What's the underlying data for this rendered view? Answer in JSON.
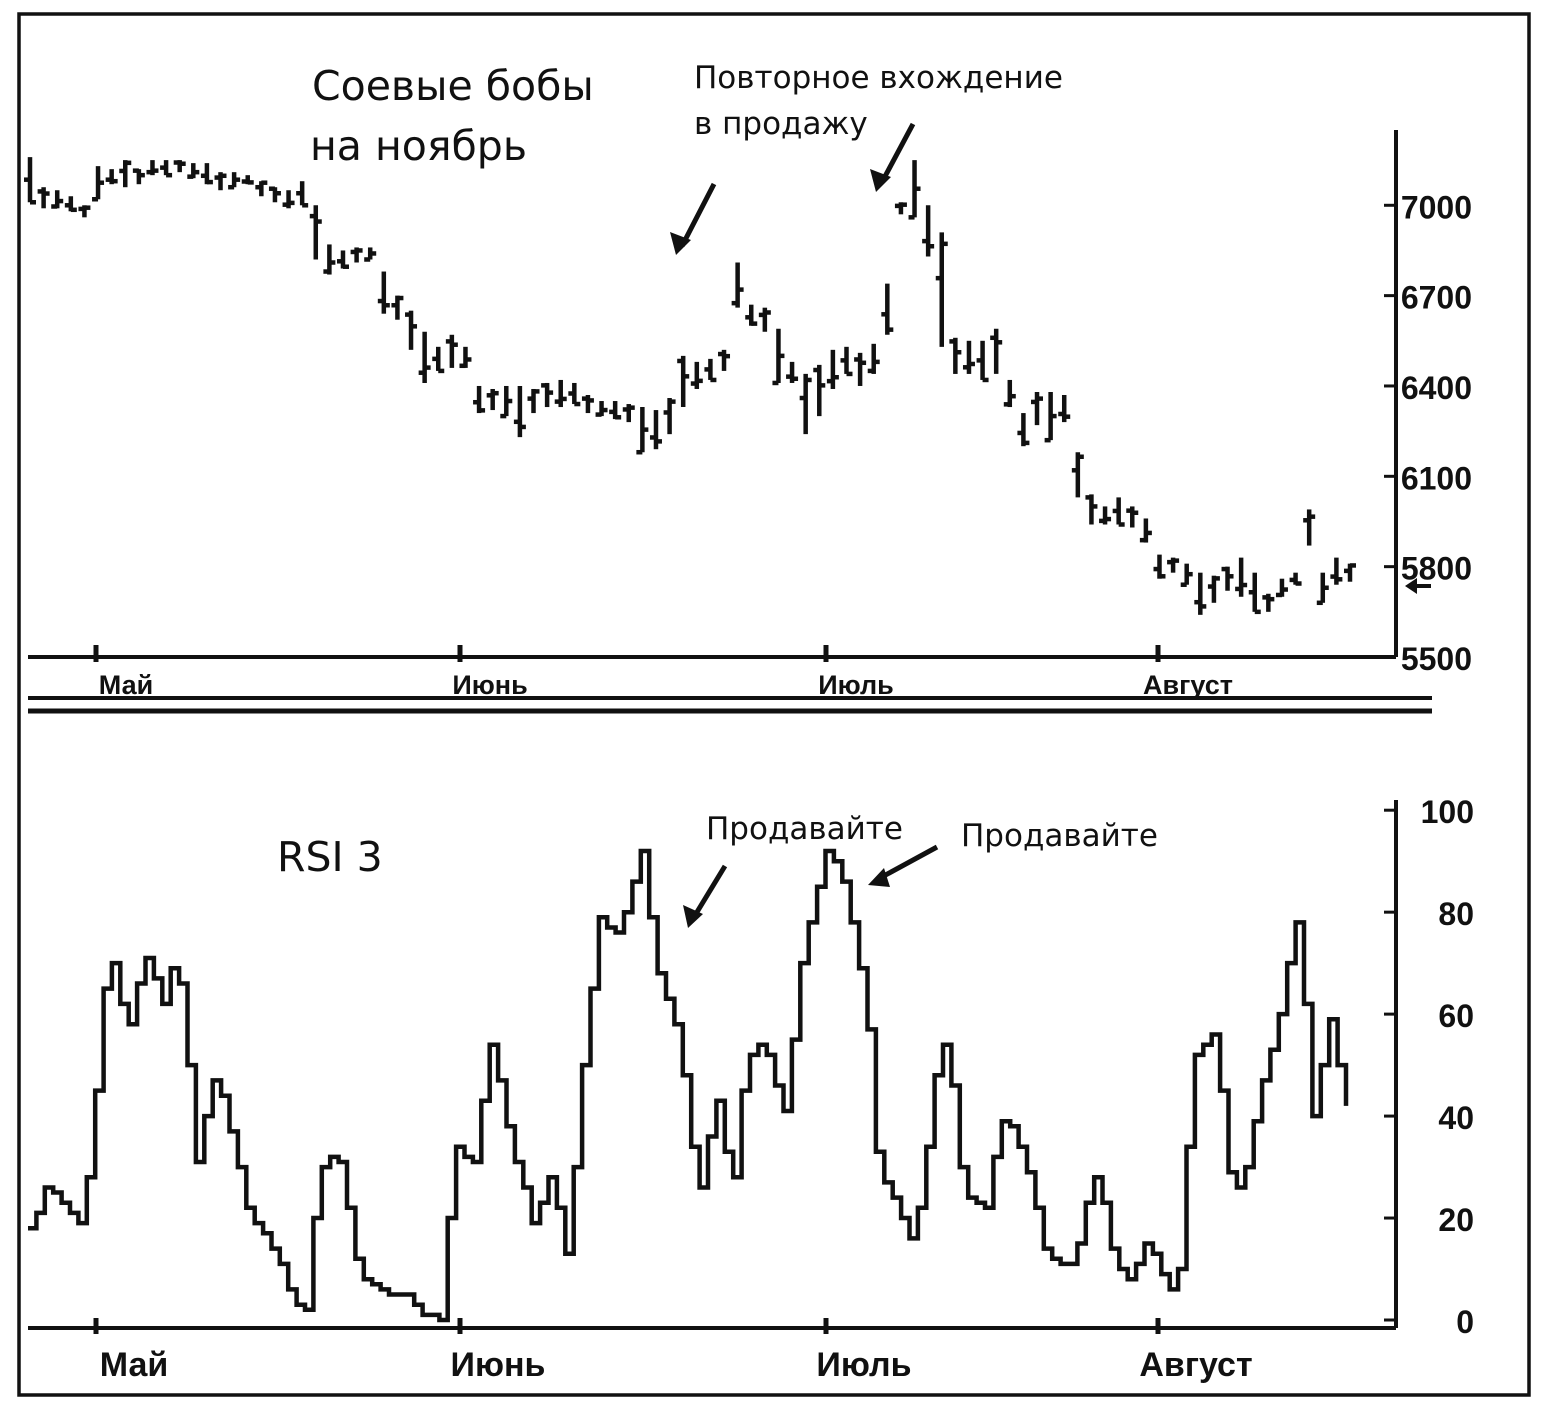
{
  "chart_data": [
    {
      "type": "bar",
      "title": "Соевые бобы\nна ноябрь",
      "annotation": "Повторное вхождение\nв продажу",
      "price_marker": "current-price-arrow",
      "y_ticks": [
        7000,
        6700,
        6400,
        6100,
        5800,
        5500
      ],
      "ylim": [
        5500,
        7250
      ],
      "x_ticks": [
        "Май",
        "Июнь",
        "Июль",
        "Август"
      ],
      "bars": [
        {
          "h": 7160,
          "l": 7010
        },
        {
          "h": 7060,
          "l": 6990
        },
        {
          "h": 7050,
          "l": 6990
        },
        {
          "h": 7030,
          "l": 6980
        },
        {
          "h": 7000,
          "l": 6960
        },
        {
          "h": 7130,
          "l": 7020
        },
        {
          "h": 7120,
          "l": 7070
        },
        {
          "h": 7150,
          "l": 7060
        },
        {
          "h": 7120,
          "l": 7070
        },
        {
          "h": 7150,
          "l": 7100
        },
        {
          "h": 7150,
          "l": 7100
        },
        {
          "h": 7150,
          "l": 7110
        },
        {
          "h": 7140,
          "l": 7090
        },
        {
          "h": 7140,
          "l": 7070
        },
        {
          "h": 7110,
          "l": 7050
        },
        {
          "h": 7110,
          "l": 7060
        },
        {
          "h": 7100,
          "l": 7070
        },
        {
          "h": 7080,
          "l": 7030
        },
        {
          "h": 7060,
          "l": 7010
        },
        {
          "h": 7050,
          "l": 6990
        },
        {
          "h": 7080,
          "l": 7000
        },
        {
          "h": 7000,
          "l": 6820
        },
        {
          "h": 6870,
          "l": 6770
        },
        {
          "h": 6850,
          "l": 6790
        },
        {
          "h": 6860,
          "l": 6810
        },
        {
          "h": 6860,
          "l": 6820
        },
        {
          "h": 6780,
          "l": 6640
        },
        {
          "h": 6700,
          "l": 6620
        },
        {
          "h": 6650,
          "l": 6520
        },
        {
          "h": 6580,
          "l": 6410
        },
        {
          "h": 6530,
          "l": 6450
        },
        {
          "h": 6570,
          "l": 6460
        },
        {
          "h": 6530,
          "l": 6460
        },
        {
          "h": 6400,
          "l": 6310
        },
        {
          "h": 6390,
          "l": 6320
        },
        {
          "h": 6400,
          "l": 6300
        },
        {
          "h": 6400,
          "l": 6230
        },
        {
          "h": 6390,
          "l": 6310
        },
        {
          "h": 6410,
          "l": 6330
        },
        {
          "h": 6420,
          "l": 6330
        },
        {
          "h": 6410,
          "l": 6340
        },
        {
          "h": 6370,
          "l": 6310
        },
        {
          "h": 6350,
          "l": 6300
        },
        {
          "h": 6350,
          "l": 6290
        },
        {
          "h": 6340,
          "l": 6280
        },
        {
          "h": 6330,
          "l": 6180
        },
        {
          "h": 6320,
          "l": 6190
        },
        {
          "h": 6360,
          "l": 6240
        },
        {
          "h": 6500,
          "l": 6330
        },
        {
          "h": 6480,
          "l": 6390
        },
        {
          "h": 6490,
          "l": 6420
        },
        {
          "h": 6520,
          "l": 6450
        },
        {
          "h": 6810,
          "l": 6660
        },
        {
          "h": 6670,
          "l": 6600
        },
        {
          "h": 6660,
          "l": 6580
        },
        {
          "h": 6590,
          "l": 6410
        },
        {
          "h": 6480,
          "l": 6410
        },
        {
          "h": 6440,
          "l": 6240
        },
        {
          "h": 6470,
          "l": 6300
        },
        {
          "h": 6520,
          "l": 6390
        },
        {
          "h": 6530,
          "l": 6440
        },
        {
          "h": 6510,
          "l": 6400
        },
        {
          "h": 6540,
          "l": 6440
        },
        {
          "h": 6740,
          "l": 6570
        },
        {
          "h": 7010,
          "l": 6970
        },
        {
          "h": 7150,
          "l": 6960
        },
        {
          "h": 7000,
          "l": 6830
        },
        {
          "h": 6910,
          "l": 6530
        },
        {
          "h": 6560,
          "l": 6440
        },
        {
          "h": 6550,
          "l": 6440
        },
        {
          "h": 6550,
          "l": 6420
        },
        {
          "h": 6590,
          "l": 6440
        },
        {
          "h": 6420,
          "l": 6330
        },
        {
          "h": 6310,
          "l": 6200
        },
        {
          "h": 6380,
          "l": 6270
        },
        {
          "h": 6380,
          "l": 6220
        },
        {
          "h": 6370,
          "l": 6280
        },
        {
          "h": 6180,
          "l": 6030
        },
        {
          "h": 6040,
          "l": 5940
        },
        {
          "h": 6000,
          "l": 5940
        },
        {
          "h": 6030,
          "l": 5940
        },
        {
          "h": 6000,
          "l": 5930
        },
        {
          "h": 5960,
          "l": 5880
        },
        {
          "h": 5840,
          "l": 5760
        },
        {
          "h": 5830,
          "l": 5780
        },
        {
          "h": 5810,
          "l": 5740
        },
        {
          "h": 5780,
          "l": 5640
        },
        {
          "h": 5770,
          "l": 5680
        },
        {
          "h": 5800,
          "l": 5720
        },
        {
          "h": 5830,
          "l": 5700
        },
        {
          "h": 5780,
          "l": 5650
        },
        {
          "h": 5710,
          "l": 5650
        },
        {
          "h": 5760,
          "l": 5700
        },
        {
          "h": 5780,
          "l": 5740
        },
        {
          "h": 5990,
          "l": 5870
        },
        {
          "h": 5780,
          "l": 5680
        },
        {
          "h": 5830,
          "l": 5740
        },
        {
          "h": 5810,
          "l": 5750
        }
      ]
    },
    {
      "type": "line",
      "title": "RSI  3",
      "annotations": [
        "Продавайте",
        "Продавайте"
      ],
      "y_ticks": [
        100,
        80,
        60,
        40,
        20,
        0
      ],
      "ylim": [
        0,
        102
      ],
      "x_ticks": [
        "Май",
        "Июнь",
        "Июль",
        "Август"
      ],
      "series": [
        {
          "values": [
            18,
            21,
            26,
            25,
            23,
            21,
            19,
            28,
            45,
            65,
            70,
            62,
            58,
            66,
            71,
            67,
            62,
            69,
            66,
            50,
            31,
            40,
            47,
            44,
            37,
            30,
            22,
            19,
            17,
            14,
            11,
            6,
            3,
            2,
            20,
            30,
            32,
            31,
            22,
            12,
            8,
            7,
            6,
            5,
            5,
            5,
            3,
            1,
            1,
            0,
            20,
            34,
            32,
            31,
            43,
            54,
            47,
            38,
            31,
            26,
            19,
            23,
            28,
            22,
            13,
            30,
            50,
            65,
            79,
            77,
            76,
            80,
            86,
            92,
            79,
            68,
            63,
            58,
            48,
            34,
            26,
            36,
            43,
            33,
            28,
            45,
            52,
            54,
            52,
            46,
            41,
            55,
            70,
            78,
            85,
            92,
            90,
            86,
            78,
            69,
            57,
            33,
            27,
            24,
            20,
            16,
            22,
            34,
            48,
            54,
            46,
            30,
            24,
            23,
            22,
            32,
            39,
            38,
            34,
            29,
            22,
            14,
            12,
            11,
            11,
            15,
            23,
            28,
            23,
            14,
            10,
            8,
            11,
            15,
            13,
            9,
            6,
            10,
            34,
            52,
            54,
            56,
            45,
            29,
            26,
            30,
            39,
            47,
            53,
            60,
            70,
            78,
            62,
            40,
            50,
            59,
            50,
            42
          ]
        }
      ]
    }
  ]
}
